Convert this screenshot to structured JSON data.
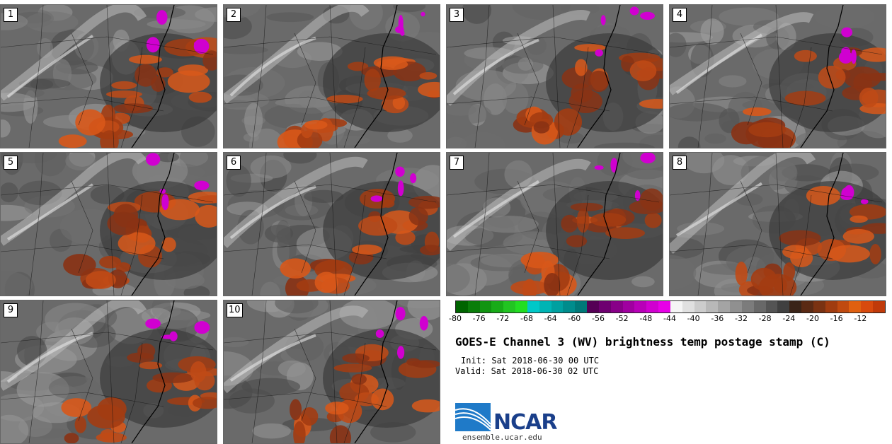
{
  "panels": [
    {
      "label": "1"
    },
    {
      "label": "2"
    },
    {
      "label": "3"
    },
    {
      "label": "4"
    },
    {
      "label": "5"
    },
    {
      "label": "6"
    },
    {
      "label": "7"
    },
    {
      "label": "8"
    },
    {
      "label": "9"
    },
    {
      "label": "10"
    }
  ],
  "colorbar": {
    "ticks": [
      "-80",
      "-76",
      "-72",
      "-68",
      "-64",
      "-60",
      "-56",
      "-52",
      "-48",
      "-44",
      "-40",
      "-36",
      "-32",
      "-28",
      "-24",
      "-20",
      "-16",
      "-12"
    ],
    "colors": [
      "#006400",
      "#0a7d0a",
      "#119411",
      "#18ab18",
      "#22c422",
      "#22dd22",
      "#00c8c8",
      "#00b4b4",
      "#00a0a0",
      "#008c8c",
      "#007878",
      "#550055",
      "#6e0070",
      "#880088",
      "#a000a0",
      "#b800b8",
      "#d000d0",
      "#e800e8",
      "#f5f5f5",
      "#e0e0e0",
      "#cccccc",
      "#b8b8b8",
      "#a4a4a4",
      "#909090",
      "#7c7c7c",
      "#686868",
      "#545454",
      "#404040",
      "#3a2418",
      "#5a2a14",
      "#7a3212",
      "#a03c10",
      "#c04a10",
      "#e06010",
      "#d84a0e",
      "#c03a0a"
    ]
  },
  "title": "GOES-E Channel 3 (WV) brightness temp postage stamp (C)",
  "init": "Init: Sat 2018-06-30 00 UTC",
  "valid": "Valid: Sat 2018-06-30 02 UTC",
  "logo": {
    "text": "NCAR",
    "url": "ensemble.ucar.edu"
  }
}
